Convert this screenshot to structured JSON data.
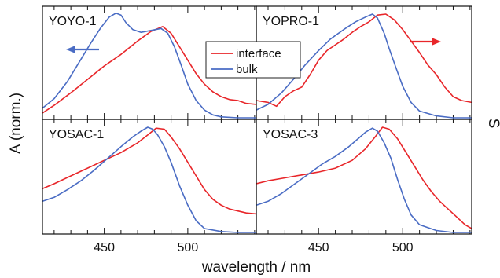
{
  "chart_data": {
    "type": "line",
    "xlabel": "wavelength / nm",
    "ylabel": "A (norm.)",
    "right_partial_label": "S",
    "xlim": [
      413,
      541
    ],
    "ylim": [
      0,
      1.08
    ],
    "xticks": [
      450,
      500
    ],
    "legend": {
      "placement": "top-center",
      "entries": [
        {
          "name": "interface",
          "color": "#e8262a"
        },
        {
          "name": "bulk",
          "color": "#4a6cc4"
        }
      ]
    },
    "panels": [
      {
        "title": "YOYO-1",
        "arrow": "left",
        "arrow_color": "#4a6cc4",
        "series": [
          {
            "name": "bulk",
            "color": "#4a6cc4",
            "x": [
              413,
              420,
              428,
              435,
              442,
              448,
              453,
              457,
              460,
              463,
              467,
              472,
              478,
              484,
              488,
              492,
              496,
              500,
              505,
              510,
              515,
              520,
              530,
              541
            ],
            "y": [
              0.1,
              0.2,
              0.38,
              0.58,
              0.78,
              0.94,
              1.05,
              1.09,
              1.07,
              0.99,
              0.92,
              0.89,
              0.91,
              0.93,
              0.88,
              0.74,
              0.55,
              0.35,
              0.18,
              0.08,
              0.03,
              0.01,
              0.0,
              0.0
            ]
          },
          {
            "name": "interface",
            "color": "#e8262a",
            "x": [
              413,
              420,
              430,
              440,
              450,
              460,
              470,
              478,
              485,
              490,
              495,
              500,
              505,
              510,
              515,
              520,
              525,
              530,
              535,
              541
            ],
            "y": [
              0.05,
              0.13,
              0.26,
              0.4,
              0.54,
              0.66,
              0.8,
              0.9,
              0.95,
              0.88,
              0.74,
              0.6,
              0.46,
              0.35,
              0.27,
              0.22,
              0.19,
              0.18,
              0.15,
              0.14
            ]
          }
        ]
      },
      {
        "title": "YOPRO-1",
        "arrow": "right",
        "arrow_color": "#e8262a",
        "series": [
          {
            "name": "bulk",
            "color": "#4a6cc4",
            "x": [
              413,
              420,
              428,
              435,
              442,
              450,
              457,
              465,
              472,
              478,
              482,
              485,
              489,
              492,
              496,
              500,
              505,
              510,
              520,
              530,
              541
            ],
            "y": [
              0.08,
              0.14,
              0.26,
              0.4,
              0.55,
              0.7,
              0.82,
              0.92,
              1.0,
              1.05,
              1.08,
              1.04,
              0.88,
              0.72,
              0.52,
              0.33,
              0.16,
              0.07,
              0.02,
              0.0,
              0.0
            ]
          },
          {
            "name": "interface",
            "color": "#e8262a",
            "x": [
              413,
              420,
              425,
              430,
              435,
              440,
              445,
              450,
              455,
              460,
              465,
              470,
              475,
              480,
              485,
              490,
              495,
              500,
              505,
              510,
              515,
              520,
              525,
              530,
              535,
              541
            ],
            "y": [
              0.18,
              0.16,
              0.12,
              0.22,
              0.28,
              0.32,
              0.45,
              0.6,
              0.7,
              0.76,
              0.82,
              0.89,
              0.95,
              1.0,
              1.07,
              1.08,
              1.02,
              0.92,
              0.8,
              0.68,
              0.55,
              0.45,
              0.32,
              0.22,
              0.18,
              0.16
            ]
          }
        ]
      },
      {
        "title": "YOSAC-1",
        "arrow": "",
        "arrow_color": "",
        "series": [
          {
            "name": "bulk",
            "color": "#4a6cc4",
            "x": [
              413,
              420,
              428,
              436,
              444,
              452,
              460,
              467,
              472,
              476,
              479,
              482,
              486,
              490,
              495,
              500,
              505,
              510,
              520,
              530,
              541
            ],
            "y": [
              0.32,
              0.36,
              0.44,
              0.53,
              0.64,
              0.76,
              0.88,
              0.98,
              1.04,
              1.08,
              1.06,
              1.0,
              0.88,
              0.72,
              0.48,
              0.28,
              0.12,
              0.04,
              0.01,
              0.0,
              0.0
            ]
          },
          {
            "name": "interface",
            "color": "#e8262a",
            "x": [
              413,
              420,
              430,
              440,
              450,
              460,
              470,
              476,
              481,
              486,
              490,
              495,
              500,
              505,
              510,
              515,
              520,
              525,
              530,
              535,
              541
            ],
            "y": [
              0.45,
              0.5,
              0.58,
              0.66,
              0.74,
              0.82,
              0.92,
              1.0,
              1.07,
              1.06,
              0.98,
              0.86,
              0.72,
              0.58,
              0.44,
              0.34,
              0.28,
              0.24,
              0.22,
              0.2,
              0.19
            ]
          }
        ]
      },
      {
        "title": "YOSAC-3",
        "arrow": "",
        "arrow_color": "",
        "series": [
          {
            "name": "bulk",
            "color": "#4a6cc4",
            "x": [
              413,
              420,
              428,
              436,
              444,
              452,
              460,
              468,
              474,
              478,
              482,
              485,
              489,
              493,
              497,
              501,
              505,
              510,
              520,
              530,
              541
            ],
            "y": [
              0.28,
              0.32,
              0.4,
              0.5,
              0.6,
              0.7,
              0.78,
              0.88,
              0.97,
              1.03,
              1.07,
              1.04,
              0.92,
              0.76,
              0.54,
              0.34,
              0.18,
              0.08,
              0.02,
              0.0,
              0.0
            ]
          },
          {
            "name": "interface",
            "color": "#e8262a",
            "x": [
              413,
              420,
              430,
              440,
              450,
              460,
              470,
              478,
              484,
              488,
              492,
              497,
              502,
              507,
              512,
              517,
              522,
              527,
              532,
              537,
              541
            ],
            "y": [
              0.5,
              0.53,
              0.56,
              0.59,
              0.62,
              0.66,
              0.74,
              0.86,
              0.99,
              1.08,
              1.06,
              0.96,
              0.82,
              0.68,
              0.54,
              0.42,
              0.32,
              0.24,
              0.16,
              0.08,
              0.04
            ]
          }
        ]
      }
    ]
  }
}
